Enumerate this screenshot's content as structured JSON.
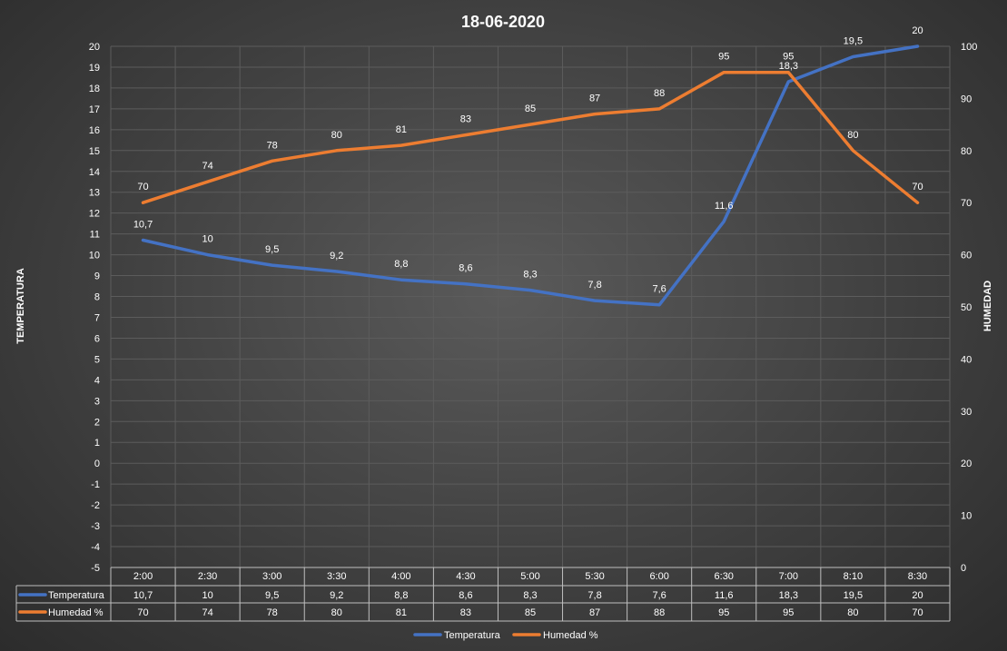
{
  "chart_data": {
    "type": "line",
    "title": "18-06-2020",
    "ylabel": "TEMPERATURA",
    "y2label": "HUMEDAD",
    "ylim": [
      -5,
      20
    ],
    "y2lim": [
      0,
      100
    ],
    "grid": true,
    "legend_position": "bottom",
    "categories": [
      "2:00",
      "2:30",
      "3:00",
      "3:30",
      "4:00",
      "4:30",
      "5:00",
      "5:30",
      "6:00",
      "6:30",
      "7:00",
      "8:10",
      "8:30"
    ],
    "series": [
      {
        "name": "Temperatura",
        "axis": "left",
        "color": "#4472c4",
        "values": [
          10.7,
          10,
          9.5,
          9.2,
          8.8,
          8.6,
          8.3,
          7.8,
          7.6,
          11.6,
          18.3,
          19.5,
          20
        ],
        "labels": [
          "10,7",
          "10",
          "9,5",
          "9,2",
          "8,8",
          "8,6",
          "8,3",
          "7,8",
          "7,6",
          "11,6",
          "18,3",
          "19,5",
          "20"
        ]
      },
      {
        "name": "Humedad %",
        "axis": "right",
        "color": "#ed7d31",
        "values": [
          70,
          74,
          78,
          80,
          81,
          83,
          85,
          87,
          88,
          95,
          95,
          80,
          70
        ],
        "labels": [
          "70",
          "74",
          "78",
          "80",
          "81",
          "83",
          "85",
          "87",
          "88",
          "95",
          "95",
          "80",
          "70"
        ]
      }
    ],
    "y_ticks": [
      "20",
      "19",
      "18",
      "17",
      "16",
      "15",
      "14",
      "13",
      "12",
      "11",
      "10",
      "9",
      "8",
      "7",
      "6",
      "5",
      "4",
      "3",
      "2",
      "1",
      "0",
      "-1",
      "-2",
      "-3",
      "-4",
      "-5"
    ],
    "y2_ticks": [
      "100",
      "90",
      "80",
      "70",
      "60",
      "50",
      "40",
      "30",
      "20",
      "10",
      "0"
    ]
  }
}
